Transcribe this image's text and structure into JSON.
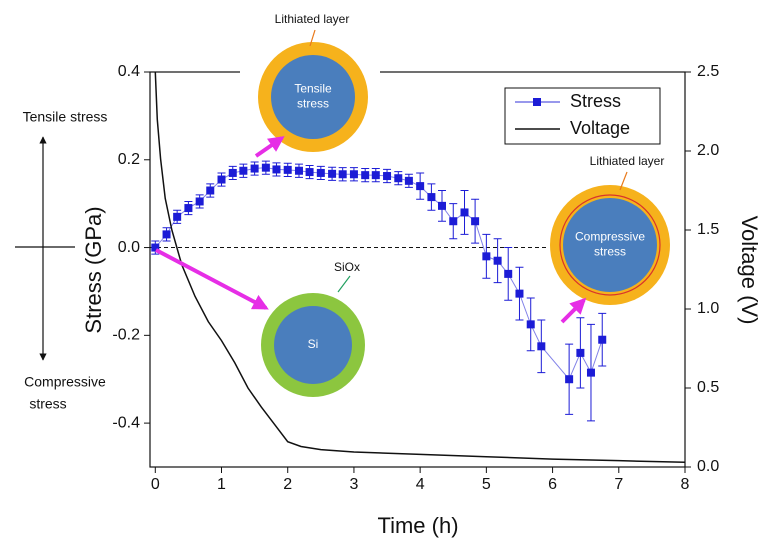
{
  "chart_data": {
    "type": "line",
    "xlabel": "Time (h)",
    "ylabel": "Stress (GPa)",
    "y2label": "Voltage (V)",
    "xlim": [
      -0.08,
      8
    ],
    "xticks": [
      0,
      1,
      2,
      3,
      4,
      5,
      6,
      7,
      8
    ],
    "ylim": [
      -0.5,
      0.4
    ],
    "yticks": [
      -0.4,
      -0.2,
      {
        "value": 0,
        "label": "0.0"
      },
      0.2,
      0.4
    ],
    "y2lim": [
      0,
      2.5
    ],
    "y2ticks": [
      {
        "value": 0,
        "label": "0.0"
      },
      0.5,
      {
        "value": 1,
        "label": "1.0"
      },
      1.5,
      {
        "value": 2,
        "label": "2.0"
      },
      2.5
    ],
    "reference_line": 0,
    "legend": "upper right",
    "series": [
      {
        "name": "Stress",
        "color": "#1c1cd6",
        "marker": "square",
        "x": [
          0,
          0.17,
          0.33,
          0.5,
          0.67,
          0.83,
          1.0,
          1.17,
          1.33,
          1.5,
          1.67,
          1.83,
          2.0,
          2.17,
          2.33,
          2.5,
          2.67,
          2.83,
          3.0,
          3.17,
          3.33,
          3.5,
          3.67,
          3.83,
          4.0,
          4.17,
          4.33,
          4.5,
          4.67,
          4.83,
          5.0,
          5.17,
          5.33,
          5.5,
          5.67,
          5.83,
          6.25,
          6.42,
          6.58,
          6.75
        ],
        "values": [
          0.0,
          0.03,
          0.07,
          0.09,
          0.105,
          0.13,
          0.155,
          0.17,
          0.175,
          0.18,
          0.182,
          0.178,
          0.177,
          0.175,
          0.172,
          0.17,
          0.168,
          0.167,
          0.167,
          0.165,
          0.165,
          0.163,
          0.158,
          0.152,
          0.14,
          0.115,
          0.095,
          0.06,
          0.08,
          0.06,
          -0.02,
          -0.03,
          -0.06,
          -0.105,
          -0.175,
          -0.225,
          -0.3,
          -0.24,
          -0.285,
          -0.21
        ],
        "errors": [
          0.015,
          0.015,
          0.015,
          0.015,
          0.015,
          0.015,
          0.015,
          0.015,
          0.015,
          0.015,
          0.015,
          0.015,
          0.015,
          0.015,
          0.015,
          0.015,
          0.015,
          0.015,
          0.015,
          0.015,
          0.015,
          0.015,
          0.015,
          0.015,
          0.03,
          0.03,
          0.035,
          0.04,
          0.05,
          0.05,
          0.05,
          0.05,
          0.06,
          0.06,
          0.06,
          0.06,
          0.08,
          0.08,
          0.11,
          0.06
        ]
      },
      {
        "name": "Voltage",
        "color": "#111111",
        "axis": "y2",
        "x": [
          0,
          0.03,
          0.08,
          0.15,
          0.25,
          0.4,
          0.6,
          0.8,
          1.0,
          1.2,
          1.4,
          1.6,
          1.8,
          2.0,
          2.2,
          2.5,
          3,
          4,
          5,
          6,
          7,
          8
        ],
        "values": [
          2.5,
          2.2,
          1.95,
          1.7,
          1.5,
          1.28,
          1.08,
          0.92,
          0.8,
          0.66,
          0.5,
          0.38,
          0.27,
          0.16,
          0.13,
          0.11,
          0.095,
          0.08,
          0.065,
          0.05,
          0.04,
          0.03
        ]
      }
    ],
    "side_labels": {
      "tensile": "Tensile stress",
      "compressive": [
        "Compressive",
        "stress"
      ]
    },
    "insets": [
      {
        "label": "Lithiated layer",
        "text": [
          "Tensile",
          "stress"
        ]
      },
      {
        "label": "SiOx",
        "text": [
          "Si"
        ]
      },
      {
        "label": "Lithiated layer",
        "text": [
          "Compressive",
          "stress"
        ]
      }
    ]
  }
}
